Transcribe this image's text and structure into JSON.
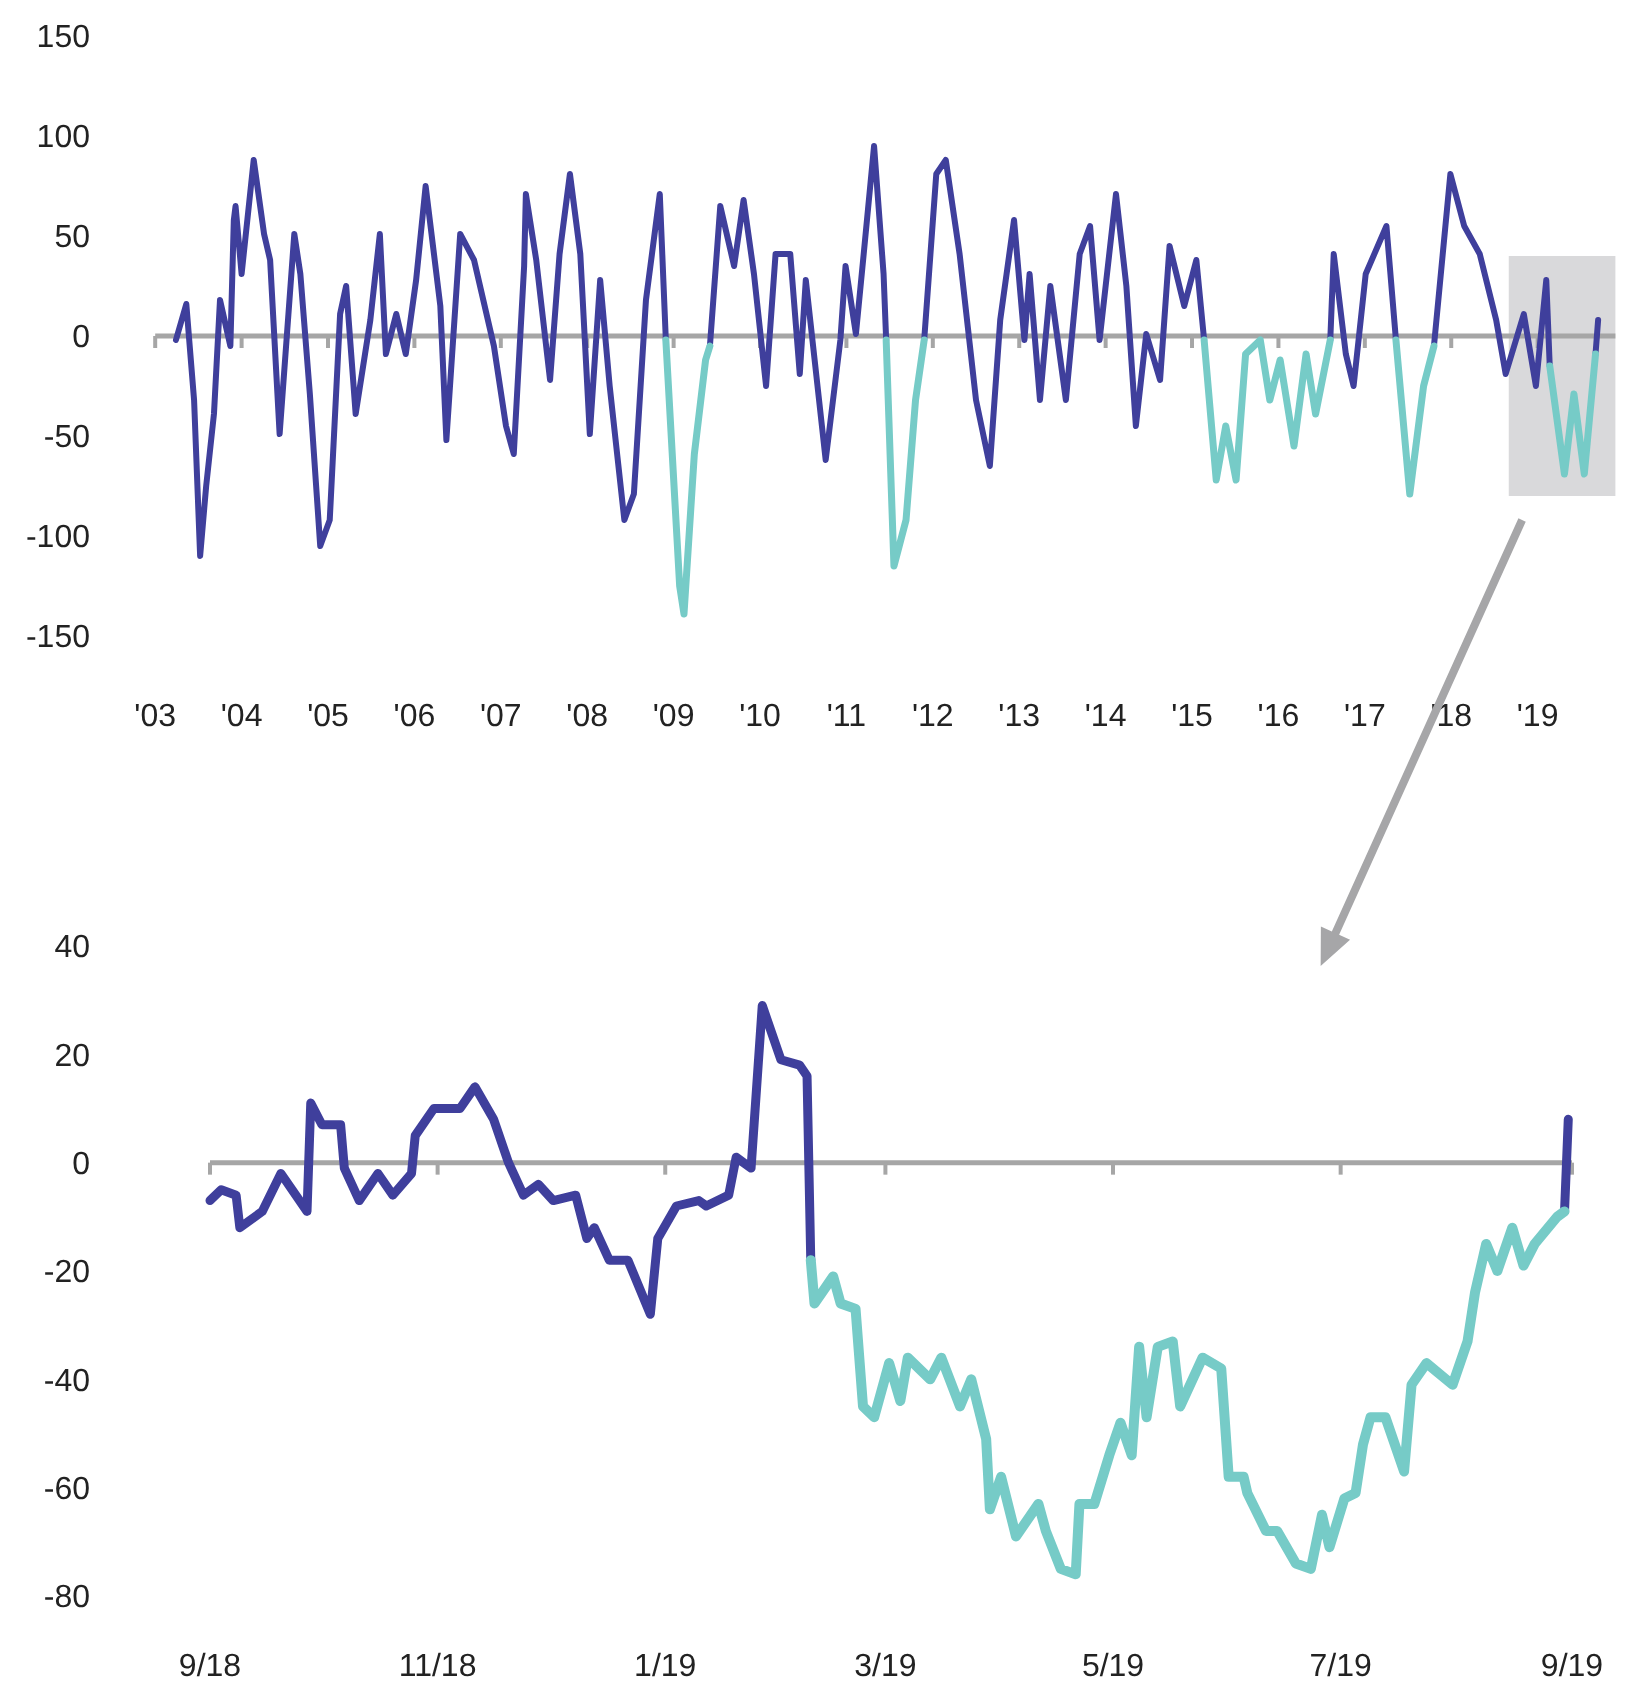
{
  "chart_data": [
    {
      "type": "line",
      "x": [
        2003.24,
        2003.36,
        2003.45,
        2003.52,
        2003.59,
        2003.68,
        2003.75,
        2003.87,
        2003.91,
        2003.93,
        2004.0,
        2004.14,
        2004.26,
        2004.33,
        2004.44,
        2004.61,
        2004.68,
        2004.79,
        2004.91,
        2005.02,
        2005.14,
        2005.21,
        2005.32,
        2005.49,
        2005.6,
        2005.67,
        2005.79,
        2005.9,
        2006.02,
        2006.13,
        2006.3,
        2006.37,
        2006.53,
        2006.69,
        2006.92,
        2007.06,
        2007.15,
        2007.27,
        2007.29,
        2007.41,
        2007.57,
        2007.68,
        2007.8,
        2007.92,
        2008.03,
        2008.15,
        2008.26,
        2008.43,
        2008.54,
        2008.68,
        2008.84,
        2008.91,
        2009.07,
        2009.12,
        2009.24,
        2009.37,
        2009.42,
        2009.54,
        2009.7,
        2009.81,
        2009.93,
        2010.07,
        2010.18,
        2010.35,
        2010.46,
        2010.53,
        2010.76,
        2010.93,
        2010.99,
        2011.11,
        2011.2,
        2011.32,
        2011.43,
        2011.46,
        2011.55,
        2011.69,
        2011.8,
        2011.9,
        2012.04,
        2012.15,
        2012.31,
        2012.5,
        2012.66,
        2012.78,
        2012.94,
        2013.06,
        2013.12,
        2013.24,
        2013.36,
        2013.54,
        2013.7,
        2013.82,
        2013.93,
        2014.12,
        2014.24,
        2014.35,
        2014.47,
        2014.63,
        2014.74,
        2014.91,
        2015.05,
        2015.14,
        2015.28,
        2015.39,
        2015.51,
        2015.62,
        2015.79,
        2015.9,
        2016.02,
        2016.18,
        2016.32,
        2016.43,
        2016.6,
        2016.64,
        2016.78,
        2016.87,
        2017.01,
        2017.25,
        2017.36,
        2017.52,
        2017.68,
        2017.8,
        2017.99,
        2018.15,
        2018.33,
        2018.52,
        2018.63,
        2018.84,
        2018.98,
        2019.1,
        2019.14,
        2019.31,
        2019.42,
        2019.54,
        2019.67,
        2019.7
      ],
      "series": [
        {
          "color": "#3f3f9c",
          "values": [
            -2,
            16,
            -32,
            -110,
            -75,
            -39,
            18,
            -5,
            58,
            65,
            31,
            88,
            51,
            38,
            -49,
            51,
            31,
            -29,
            -105,
            -92,
            11,
            25,
            -39,
            8,
            51,
            -9,
            11,
            -9,
            28,
            75,
            15,
            -52,
            51,
            38,
            -5,
            -45,
            -59,
            35,
            71,
            38,
            -22,
            41,
            81,
            41,
            -49,
            28,
            -25,
            -92,
            -79,
            18,
            71,
            -2,
            null,
            null,
            null,
            null,
            -5,
            65,
            35,
            68,
            31,
            -25,
            41,
            41,
            -19,
            28,
            -62,
            -2,
            35,
            1,
            41,
            95,
            31,
            -2,
            null,
            null,
            null,
            -2,
            81,
            88,
            41,
            -32,
            -65,
            8,
            58,
            -2,
            31,
            -32,
            25,
            -32,
            41,
            55,
            -2,
            71,
            25,
            -45,
            1,
            -22,
            45,
            15,
            38,
            -2,
            null,
            null,
            null,
            null,
            null,
            null,
            null,
            null,
            null,
            null,
            -2,
            41,
            -9,
            -25,
            31,
            55,
            -2,
            null,
            null,
            -5,
            81,
            55,
            41,
            8,
            -19,
            11,
            -25,
            28,
            -15,
            null,
            null,
            null,
            -9,
            8
          ]
        },
        {
          "color": "#76cbc7",
          "values": [
            null,
            null,
            null,
            null,
            null,
            null,
            null,
            null,
            null,
            null,
            null,
            null,
            null,
            null,
            null,
            null,
            null,
            null,
            null,
            null,
            null,
            null,
            null,
            null,
            null,
            null,
            null,
            null,
            null,
            null,
            null,
            null,
            null,
            null,
            null,
            null,
            null,
            null,
            null,
            null,
            null,
            null,
            null,
            null,
            null,
            null,
            null,
            null,
            null,
            null,
            null,
            -2,
            -125,
            -139,
            -59,
            -12,
            -5,
            null,
            null,
            null,
            null,
            null,
            null,
            null,
            null,
            null,
            null,
            null,
            null,
            null,
            null,
            null,
            null,
            -2,
            -115,
            -92,
            -32,
            -2,
            null,
            null,
            null,
            null,
            null,
            null,
            null,
            null,
            null,
            null,
            null,
            null,
            null,
            null,
            null,
            null,
            null,
            null,
            null,
            null,
            null,
            null,
            null,
            -2,
            -72,
            -45,
            -72,
            -9,
            -2,
            -32,
            -12,
            -55,
            -9,
            -39,
            -2,
            null,
            null,
            null,
            null,
            null,
            -2,
            -79,
            -25,
            -5,
            null,
            null,
            null,
            null,
            null,
            null,
            null,
            null,
            -15,
            -69,
            -29,
            -69,
            -9,
            null
          ]
        }
      ],
      "xlim": [
        2003,
        2019.9
      ],
      "ylim": [
        -150,
        150
      ],
      "xticks": [
        {
          "value": 2003,
          "label": "'03"
        },
        {
          "value": 2004,
          "label": "'04"
        },
        {
          "value": 2005,
          "label": "'05"
        },
        {
          "value": 2006,
          "label": "'06"
        },
        {
          "value": 2007,
          "label": "'07"
        },
        {
          "value": 2008,
          "label": "'08"
        },
        {
          "value": 2009,
          "label": "'09"
        },
        {
          "value": 2010,
          "label": "'10"
        },
        {
          "value": 2011,
          "label": "'11"
        },
        {
          "value": 2012,
          "label": "'12"
        },
        {
          "value": 2013,
          "label": "'13"
        },
        {
          "value": 2014,
          "label": "'14"
        },
        {
          "value": 2015,
          "label": "'15"
        },
        {
          "value": 2016,
          "label": "'16"
        },
        {
          "value": 2017,
          "label": "'17"
        },
        {
          "value": 2018,
          "label": "'18"
        },
        {
          "value": 2019,
          "label": "'19"
        }
      ],
      "yticks": [
        -150,
        -100,
        -50,
        0,
        50,
        100,
        150
      ]
    },
    {
      "type": "line",
      "x": [
        "2018-09-01",
        "2018-09-04",
        "2018-09-08",
        "2018-09-09",
        "2018-09-15",
        "2018-09-20",
        "2018-09-27",
        "2018-09-28",
        "2018-10-01",
        "2018-10-06",
        "2018-10-07",
        "2018-10-11",
        "2018-10-16",
        "2018-10-20",
        "2018-10-25",
        "2018-10-26",
        "2018-10-31",
        "2018-11-07",
        "2018-11-11",
        "2018-11-16",
        "2018-11-20",
        "2018-11-24",
        "2018-11-28",
        "2018-12-02",
        "2018-12-08",
        "2018-12-11",
        "2018-12-13",
        "2018-12-17",
        "2018-12-22",
        "2018-12-28",
        "2018-12-30",
        "2019-01-04",
        "2019-01-10",
        "2019-01-12",
        "2019-01-18",
        "2019-01-20",
        "2019-01-24",
        "2019-01-27",
        "2019-02-01",
        "2019-02-06",
        "2019-02-08",
        "2019-02-09",
        "2019-02-10",
        "2019-02-15",
        "2019-02-17",
        "2019-02-21",
        "2019-02-23",
        "2019-02-26",
        "2019-03-02",
        "2019-03-05",
        "2019-03-07",
        "2019-03-13",
        "2019-03-16",
        "2019-03-21",
        "2019-03-24",
        "2019-03-28",
        "2019-03-29",
        "2019-04-01",
        "2019-04-05",
        "2019-04-11",
        "2019-04-13",
        "2019-04-17",
        "2019-04-21",
        "2019-04-22",
        "2019-04-26",
        "2019-04-30",
        "2019-05-03",
        "2019-05-06",
        "2019-05-08",
        "2019-05-10",
        "2019-05-13",
        "2019-05-17",
        "2019-05-19",
        "2019-05-25",
        "2019-05-30",
        "2019-06-01",
        "2019-06-05",
        "2019-06-06",
        "2019-06-11",
        "2019-06-14",
        "2019-06-19",
        "2019-06-23",
        "2019-06-26",
        "2019-06-28",
        "2019-07-02",
        "2019-07-05",
        "2019-07-07",
        "2019-07-09",
        "2019-07-13",
        "2019-07-18",
        "2019-07-20",
        "2019-07-24",
        "2019-07-31",
        "2019-08-04",
        "2019-08-06",
        "2019-08-09",
        "2019-08-12",
        "2019-08-16",
        "2019-08-19",
        "2019-08-22",
        "2019-08-28",
        "2019-08-30",
        "2019-08-31"
      ],
      "series": [
        {
          "color": "#3f3f9c",
          "values": [
            -7,
            -5,
            -6,
            -12,
            -9,
            -2,
            -9,
            11,
            7,
            7,
            -1,
            -7,
            -2,
            -6,
            -2,
            5,
            10,
            10,
            14,
            8,
            0,
            -6,
            -4,
            -7,
            -6,
            -14,
            -12,
            -18,
            -18,
            -28,
            -14,
            -8,
            -7,
            -8,
            -6,
            1,
            -1,
            29,
            19,
            18,
            16,
            -18,
            null,
            null,
            null,
            null,
            null,
            null,
            null,
            null,
            null,
            null,
            null,
            null,
            null,
            null,
            null,
            null,
            null,
            null,
            null,
            null,
            null,
            null,
            null,
            null,
            null,
            null,
            null,
            null,
            null,
            null,
            null,
            null,
            null,
            null,
            null,
            null,
            null,
            null,
            null,
            null,
            null,
            null,
            null,
            null,
            null,
            null,
            null,
            null,
            null,
            null,
            null,
            null,
            null,
            null,
            null,
            null,
            null,
            null,
            null,
            -9,
            8
          ]
        },
        {
          "color": "#76cbc7",
          "values": [
            null,
            null,
            null,
            null,
            null,
            null,
            null,
            null,
            null,
            null,
            null,
            null,
            null,
            null,
            null,
            null,
            null,
            null,
            null,
            null,
            null,
            null,
            null,
            null,
            null,
            null,
            null,
            null,
            null,
            null,
            null,
            null,
            null,
            null,
            null,
            null,
            null,
            null,
            null,
            null,
            null,
            -18,
            -26,
            -21,
            -26,
            -27,
            -45,
            -47,
            -37,
            -44,
            -36,
            -40,
            -36,
            -45,
            -40,
            -51,
            -64,
            -58,
            -69,
            -63,
            -68,
            -75,
            -76,
            -63,
            -63,
            -54,
            -48,
            -54,
            -34,
            -47,
            -34,
            -33,
            -45,
            -36,
            -38,
            -58,
            -58,
            -61,
            -68,
            -68,
            -74,
            -75,
            -65,
            -71,
            -62,
            -61,
            -52,
            -47,
            -47,
            -57,
            -41,
            -37,
            -41,
            -33,
            -24,
            -15,
            -20,
            -12,
            -19,
            -15,
            -10,
            -9,
            null
          ]
        }
      ],
      "xlim": [
        "2018-09-01",
        "2019-09-01"
      ],
      "ylim": [
        -80,
        40
      ],
      "xticks": [
        {
          "value": "2018-09-01",
          "label": "9/18"
        },
        {
          "value": "2018-11-01",
          "label": "11/18"
        },
        {
          "value": "2019-01-01",
          "label": "1/19"
        },
        {
          "value": "2019-03-01",
          "label": "3/19"
        },
        {
          "value": "2019-05-01",
          "label": "5/19"
        },
        {
          "value": "2019-07-01",
          "label": "7/19"
        },
        {
          "value": "2019-09-01",
          "label": "9/19"
        }
      ],
      "yticks": [
        -80,
        -60,
        -40,
        -20,
        0,
        20,
        40
      ]
    }
  ]
}
